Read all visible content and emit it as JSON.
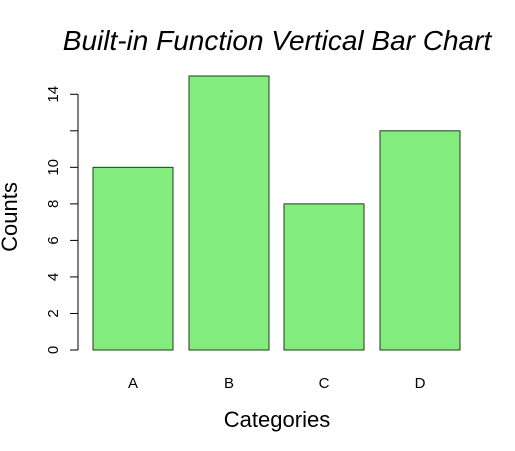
{
  "chart_data": {
    "type": "bar",
    "title": "Built-in Function Vertical Bar Chart",
    "xlabel": "Categories",
    "ylabel": "Counts",
    "categories": [
      "A",
      "B",
      "C",
      "D"
    ],
    "values": [
      10,
      15,
      8,
      12
    ],
    "ylim": [
      0,
      15
    ],
    "y_ticks": [
      0,
      2,
      4,
      6,
      8,
      10,
      14
    ],
    "grid": false,
    "bar_fill": "#82EC7E",
    "bar_stroke": "#1f3b1f"
  }
}
